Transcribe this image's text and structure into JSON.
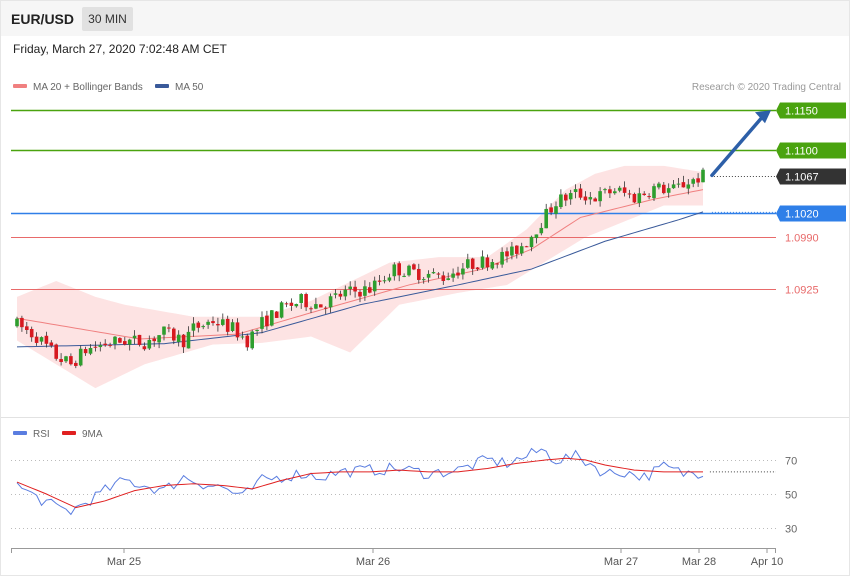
{
  "header": {
    "symbol": "EUR/USD",
    "timeframe": "30 MIN",
    "datetime": "Friday, March 27, 2020 7:02:48 AM CET"
  },
  "legend": {
    "ma20": "MA 20 + Bollinger Bands",
    "ma50": "MA 50",
    "rsi": "RSI",
    "rsi_ma": "9MA"
  },
  "copyright": "Research © 2020 Trading Central",
  "colors": {
    "bull": "#2e9e2e",
    "bear": "#d71920",
    "ma20": "#f08080",
    "ma50": "#3a5a9a",
    "band_fill": "#fde3e3",
    "resistance": "#4aa30f",
    "pivot": "#2f7fe8",
    "support": "#e86a6a",
    "last": "#333333",
    "rsi": "#5a7de0",
    "rsi_ma": "#e02020",
    "arrow": "#2d5fa8"
  },
  "chart_data": [
    {
      "type": "candlestick",
      "title": "",
      "ylim": [
        1.077,
        1.1178
      ],
      "x_ticks": [
        "Mar 25",
        "Mar 26",
        "Mar 27",
        "Mar 28",
        "Apr 10"
      ],
      "levels": [
        {
          "label": "1.1150",
          "value": 1.115,
          "kind": "resistance"
        },
        {
          "label": "1.1100",
          "value": 1.11,
          "kind": "resistance"
        },
        {
          "label": "1.1067",
          "value": 1.1067,
          "kind": "last"
        },
        {
          "label": "1.1020",
          "value": 1.102,
          "kind": "pivot"
        },
        {
          "label": "1.0990",
          "value": 1.099,
          "kind": "support"
        },
        {
          "label": "1.0925",
          "value": 1.0925,
          "kind": "support"
        }
      ],
      "anchors": [
        [
          0,
          1.088
        ],
        [
          4,
          1.0865
        ],
        [
          8,
          1.084
        ],
        [
          11,
          1.083
        ],
        [
          14,
          1.0848
        ],
        [
          18,
          1.0856
        ],
        [
          22,
          1.086
        ],
        [
          26,
          1.0858
        ],
        [
          30,
          1.087
        ],
        [
          34,
          1.086
        ],
        [
          36,
          1.0875
        ],
        [
          40,
          1.0885
        ],
        [
          44,
          1.0875
        ],
        [
          47,
          1.086
        ],
        [
          50,
          1.0882
        ],
        [
          54,
          1.09
        ],
        [
          58,
          1.091
        ],
        [
          62,
          1.0905
        ],
        [
          67,
          1.092
        ],
        [
          72,
          1.0925
        ],
        [
          77,
          1.095
        ],
        [
          82,
          1.0945
        ],
        [
          87,
          1.094
        ],
        [
          92,
          1.0955
        ],
        [
          97,
          1.0962
        ],
        [
          101,
          1.097
        ],
        [
          104,
          1.0985
        ],
        [
          107,
          1.101
        ],
        [
          110,
          1.1035
        ],
        [
          114,
          1.1045
        ],
        [
          118,
          1.104
        ],
        [
          122,
          1.105
        ],
        [
          126,
          1.104
        ],
        [
          130,
          1.1052
        ],
        [
          134,
          1.105
        ],
        [
          137,
          1.106
        ],
        [
          140,
          1.1067
        ]
      ],
      "ma20": [
        [
          0,
          1.0888
        ],
        [
          25,
          1.0862
        ],
        [
          45,
          1.0868
        ],
        [
          60,
          1.0895
        ],
        [
          80,
          1.093
        ],
        [
          95,
          1.095
        ],
        [
          105,
          1.0975
        ],
        [
          115,
          1.1015
        ],
        [
          130,
          1.1038
        ],
        [
          140,
          1.105
        ]
      ],
      "ma50": [
        [
          0,
          1.0852
        ],
        [
          30,
          1.0856
        ],
        [
          50,
          1.087
        ],
        [
          70,
          1.0905
        ],
        [
          90,
          1.093
        ],
        [
          105,
          1.095
        ],
        [
          120,
          1.0985
        ],
        [
          135,
          1.1012
        ],
        [
          140,
          1.1022
        ]
      ],
      "bb_upper": [
        [
          0,
          1.0915
        ],
        [
          8,
          1.0935
        ],
        [
          16,
          1.0915
        ],
        [
          22,
          1.0905
        ],
        [
          36,
          1.089
        ],
        [
          50,
          1.089
        ],
        [
          60,
          1.091
        ],
        [
          76,
          1.0958
        ],
        [
          86,
          1.0965
        ],
        [
          96,
          1.0965
        ],
        [
          104,
          1.1
        ],
        [
          112,
          1.105
        ],
        [
          118,
          1.107
        ],
        [
          124,
          1.108
        ],
        [
          132,
          1.108
        ],
        [
          140,
          1.1072
        ]
      ],
      "bb_lower": [
        [
          0,
          1.086
        ],
        [
          8,
          1.083
        ],
        [
          16,
          1.08
        ],
        [
          26,
          1.083
        ],
        [
          40,
          1.0855
        ],
        [
          50,
          1.0857
        ],
        [
          60,
          1.0865
        ],
        [
          68,
          1.0845
        ],
        [
          78,
          1.0905
        ],
        [
          90,
          1.092
        ],
        [
          100,
          1.093
        ],
        [
          108,
          1.096
        ],
        [
          116,
          1.099
        ],
        [
          124,
          1.101
        ],
        [
          132,
          1.103
        ],
        [
          140,
          1.103
        ]
      ],
      "forecast_arrow": {
        "from": 1.1068,
        "to": 1.115
      }
    },
    {
      "type": "line",
      "title": "",
      "ylim": [
        23,
        77
      ],
      "y_ticks": [
        70,
        50,
        30
      ],
      "series": [
        {
          "name": "RSI",
          "anchors": [
            [
              0,
              55
            ],
            [
              4,
              48
            ],
            [
              8,
              42
            ],
            [
              11,
              40
            ],
            [
              14,
              45
            ],
            [
              18,
              52
            ],
            [
              22,
              58
            ],
            [
              26,
              55
            ],
            [
              30,
              52
            ],
            [
              34,
              60
            ],
            [
              38,
              56
            ],
            [
              42,
              54
            ],
            [
              46,
              48
            ],
            [
              50,
              58
            ],
            [
              54,
              60
            ],
            [
              58,
              62
            ],
            [
              62,
              60
            ],
            [
              66,
              63
            ],
            [
              72,
              64
            ],
            [
              78,
              65
            ],
            [
              84,
              62
            ],
            [
              90,
              64
            ],
            [
              96,
              70
            ],
            [
              100,
              68
            ],
            [
              104,
              72
            ],
            [
              107,
              76
            ],
            [
              110,
              70
            ],
            [
              114,
              72
            ],
            [
              117,
              68
            ],
            [
              120,
              62
            ],
            [
              124,
              63
            ],
            [
              128,
              60
            ],
            [
              132,
              66
            ],
            [
              136,
              62
            ],
            [
              140,
              63
            ]
          ]
        },
        {
          "name": "9MA",
          "anchors": [
            [
              0,
              57
            ],
            [
              6,
              50
            ],
            [
              12,
              42
            ],
            [
              18,
              46
            ],
            [
              24,
              52
            ],
            [
              30,
              55
            ],
            [
              36,
              56
            ],
            [
              42,
              55
            ],
            [
              48,
              53
            ],
            [
              54,
              58
            ],
            [
              60,
              62
            ],
            [
              66,
              63
            ],
            [
              72,
              63
            ],
            [
              78,
              64
            ],
            [
              84,
              63
            ],
            [
              90,
              63
            ],
            [
              96,
              65
            ],
            [
              102,
              68
            ],
            [
              108,
              70
            ],
            [
              112,
              71
            ],
            [
              116,
              70
            ],
            [
              120,
              67
            ],
            [
              126,
              64
            ],
            [
              132,
              63
            ],
            [
              140,
              63
            ]
          ]
        }
      ]
    }
  ]
}
